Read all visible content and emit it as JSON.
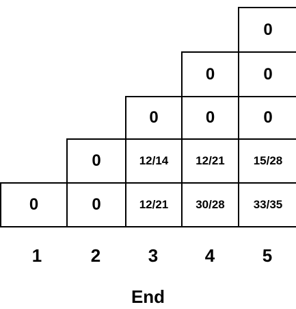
{
  "rows": [
    {
      "start_col": 5,
      "cells": [
        "0"
      ]
    },
    {
      "start_col": 4,
      "cells": [
        "0",
        "0"
      ]
    },
    {
      "start_col": 3,
      "cells": [
        "0",
        "0",
        "0"
      ]
    },
    {
      "start_col": 2,
      "cells": [
        "0",
        "12/14",
        "12/21",
        "15/28"
      ]
    },
    {
      "start_col": 1,
      "cells": [
        "0",
        "0",
        "12/21",
        "30/28",
        "33/35"
      ]
    }
  ],
  "column_labels": [
    "1",
    "2",
    "3",
    "4",
    "5"
  ],
  "axis_label": "End"
}
